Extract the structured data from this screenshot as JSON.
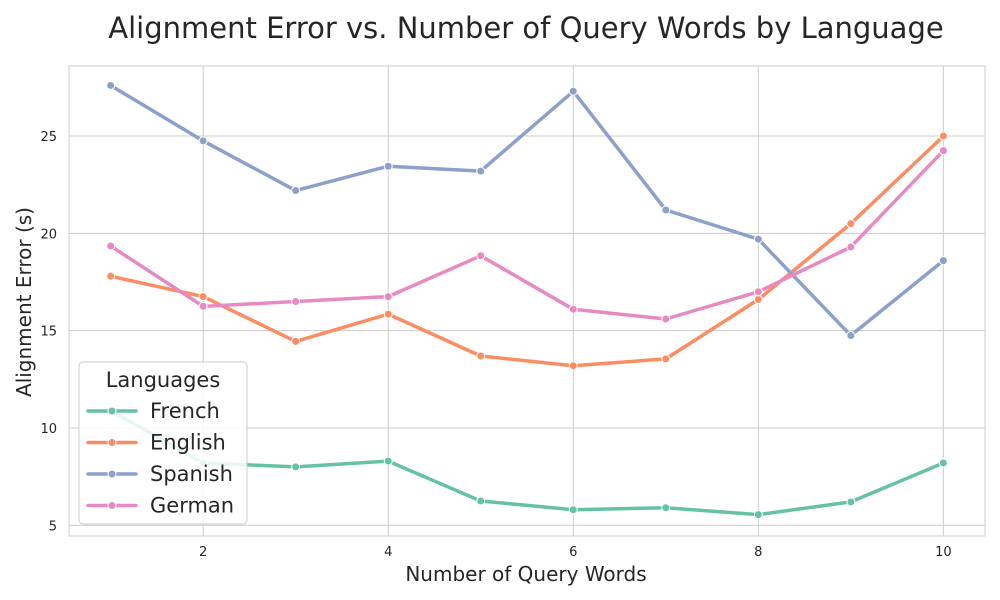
{
  "chart_data": {
    "type": "line",
    "title": "Alignment Error vs. Number of Query Words by Language",
    "xlabel": "Number of Query Words",
    "ylabel": "Alignment Error (s)",
    "xlim": [
      0.55,
      10.45
    ],
    "ylim": [
      4.45,
      28.6
    ],
    "xticks": [
      2,
      4,
      6,
      8,
      10
    ],
    "yticks": [
      5,
      10,
      15,
      20,
      25
    ],
    "x": [
      1,
      2,
      3,
      4,
      5,
      6,
      7,
      8,
      9,
      10
    ],
    "grid": true,
    "legend": {
      "title": "Languages",
      "position": "lower-left"
    },
    "series": [
      {
        "name": "French",
        "color": "#66c2a5",
        "values": [
          10.9,
          8.2,
          8.0,
          8.3,
          6.25,
          5.8,
          5.9,
          5.55,
          6.2,
          8.2
        ]
      },
      {
        "name": "English",
        "color": "#fc8d62",
        "values": [
          17.8,
          16.75,
          14.45,
          15.85,
          13.7,
          13.2,
          13.55,
          16.6,
          20.5,
          25.0
        ]
      },
      {
        "name": "Spanish",
        "color": "#8da0cb",
        "values": [
          27.6,
          24.75,
          22.2,
          23.45,
          23.2,
          27.3,
          21.2,
          19.7,
          14.75,
          18.6
        ]
      },
      {
        "name": "German",
        "color": "#e78ac3",
        "values": [
          19.35,
          16.25,
          16.5,
          16.75,
          18.85,
          16.1,
          15.6,
          17.0,
          19.3,
          24.25
        ]
      }
    ]
  }
}
